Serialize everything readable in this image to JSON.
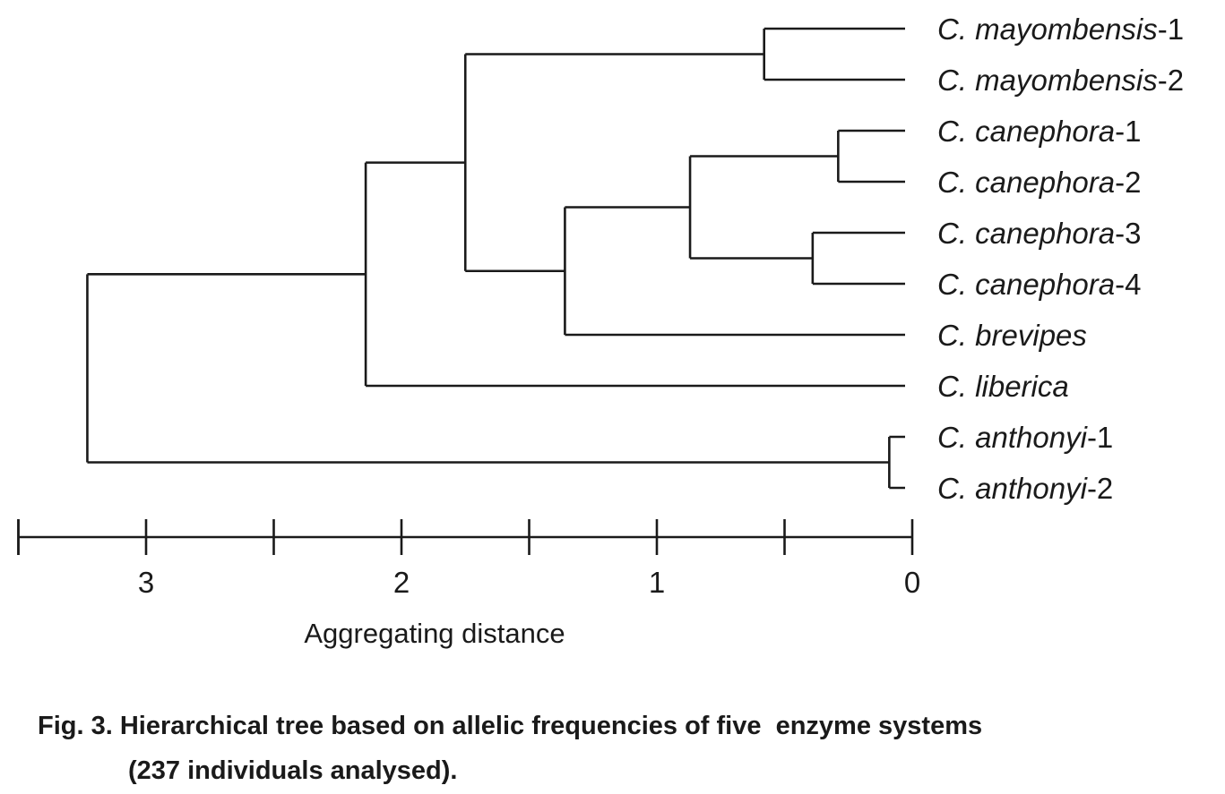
{
  "tree": {
    "leaves": [
      {
        "genus": "C.",
        "species": "mayombensis",
        "suffix": "-1"
      },
      {
        "genus": "C.",
        "species": "mayombensis",
        "suffix": "-2"
      },
      {
        "genus": "C.",
        "species": "canephora",
        "suffix": "-1"
      },
      {
        "genus": "C.",
        "species": "canephora",
        "suffix": "-2"
      },
      {
        "genus": "C.",
        "species": "canephora",
        "suffix": "-3"
      },
      {
        "genus": "C.",
        "species": "canephora",
        "suffix": "-4"
      },
      {
        "genus": "C.",
        "species": "brevipes",
        "suffix": ""
      },
      {
        "genus": "C.",
        "species": "liberica",
        "suffix": ""
      },
      {
        "genus": "C.",
        "species": "anthonyi",
        "suffix": "-1"
      },
      {
        "genus": "C.",
        "species": "anthonyi",
        "suffix": "-2"
      }
    ],
    "merges": [
      {
        "children": [
          "L8",
          "L9"
        ],
        "distance": 0.09
      },
      {
        "children": [
          "L2",
          "L3"
        ],
        "distance": 0.29
      },
      {
        "children": [
          "L4",
          "L5"
        ],
        "distance": 0.39
      },
      {
        "children": [
          "L0",
          "L1"
        ],
        "distance": 0.58
      },
      {
        "children": [
          "N1",
          "N2"
        ],
        "distance": 0.87
      },
      {
        "children": [
          "N4",
          "L6"
        ],
        "distance": 1.36
      },
      {
        "children": [
          "N3",
          "N5"
        ],
        "distance": 1.75
      },
      {
        "children": [
          "N6",
          "L7"
        ],
        "distance": 2.14
      },
      {
        "children": [
          "N7",
          "N0"
        ],
        "distance": 3.23
      }
    ]
  },
  "axis": {
    "title": "Aggregating distance",
    "major_ticks": [
      3,
      2,
      1,
      0
    ],
    "minor_ticks": [
      3.5,
      2.5,
      1.5,
      0.5
    ],
    "range": [
      3.5,
      0
    ]
  },
  "caption": {
    "line1": "Fig. 3. Hierarchical tree based on allelic frequencies of five  enzyme systems",
    "line2": "(237 individuals analysed)."
  }
}
